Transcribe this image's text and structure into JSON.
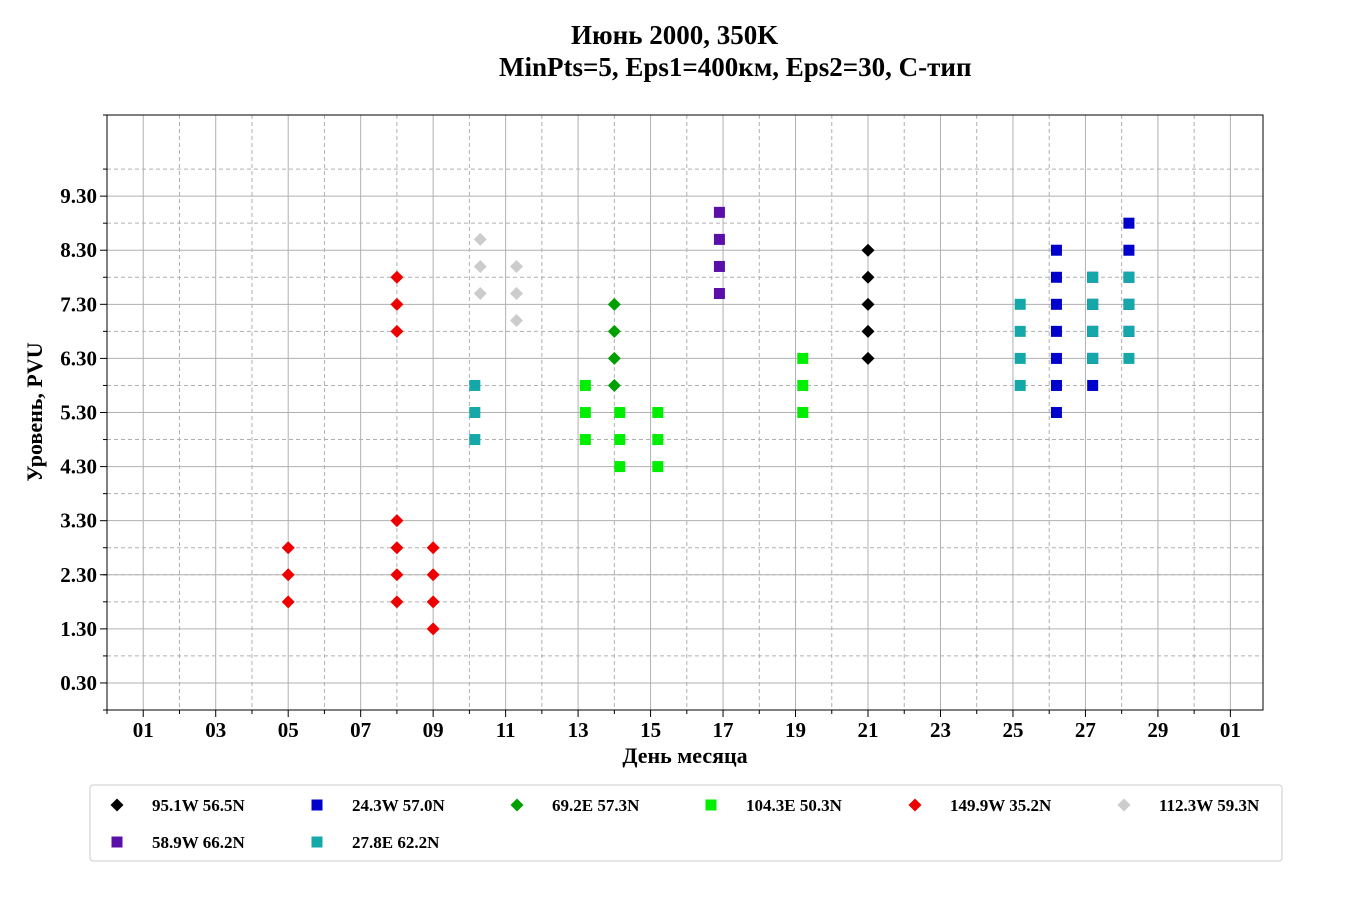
{
  "chart_data": {
    "type": "scatter",
    "title": "Июнь 2000, 350K",
    "subtitle": "MinPts=5, Eps1=400км, Eps2=30, С-тип",
    "xlabel": "День месяца",
    "ylabel": "Уровень, PVU",
    "x_ticks": [
      "01",
      "03",
      "05",
      "07",
      "09",
      "11",
      "13",
      "15",
      "17",
      "19",
      "21",
      "23",
      "25",
      "27",
      "29",
      "01"
    ],
    "y_ticks": [
      "0.30",
      "1.30",
      "2.30",
      "3.30",
      "4.30",
      "5.30",
      "6.30",
      "7.30",
      "8.30",
      "9.30"
    ],
    "xlim": [
      0,
      31.9
    ],
    "ylim": [
      -0.2,
      10.8
    ],
    "grid": true,
    "legend_position": "bottom",
    "series": [
      {
        "name": "95.1W 56.5N",
        "color": "#000000",
        "marker": "diamond",
        "points": [
          [
            21.0,
            6.3
          ],
          [
            21.0,
            6.8
          ],
          [
            21.0,
            7.3
          ],
          [
            21.0,
            7.8
          ],
          [
            21.0,
            8.3
          ]
        ]
      },
      {
        "name": "24.3W 57.0N",
        "color": "#0000cc",
        "marker": "square",
        "points": [
          [
            26.2,
            5.3
          ],
          [
            26.2,
            5.8
          ],
          [
            26.2,
            6.3
          ],
          [
            26.2,
            6.8
          ],
          [
            26.2,
            7.3
          ],
          [
            26.2,
            7.8
          ],
          [
            26.2,
            8.3
          ],
          [
            27.2,
            5.8
          ],
          [
            27.2,
            6.3
          ],
          [
            27.2,
            6.8
          ],
          [
            27.2,
            7.3
          ],
          [
            27.2,
            7.8
          ],
          [
            28.2,
            6.8
          ],
          [
            28.2,
            7.3
          ],
          [
            28.2,
            7.8
          ],
          [
            28.2,
            8.3
          ],
          [
            28.2,
            8.8
          ]
        ]
      },
      {
        "name": "69.2E 57.3N",
        "color": "#00a000",
        "marker": "diamond",
        "points": [
          [
            14.0,
            5.8
          ],
          [
            14.0,
            6.3
          ],
          [
            14.0,
            6.8
          ],
          [
            14.0,
            7.3
          ]
        ]
      },
      {
        "name": "104.3E 50.3N",
        "color": "#00ee00",
        "marker": "square",
        "points": [
          [
            13.2,
            4.8
          ],
          [
            13.2,
            5.3
          ],
          [
            13.2,
            5.8
          ],
          [
            14.15,
            4.3
          ],
          [
            14.15,
            4.8
          ],
          [
            14.15,
            5.3
          ],
          [
            15.2,
            4.3
          ],
          [
            15.2,
            4.8
          ],
          [
            15.2,
            5.3
          ],
          [
            19.2,
            5.3
          ],
          [
            19.2,
            5.8
          ],
          [
            19.2,
            6.3
          ]
        ]
      },
      {
        "name": "149.9W 35.2N",
        "color": "#ee0000",
        "marker": "diamond",
        "points": [
          [
            5.0,
            1.8
          ],
          [
            5.0,
            2.3
          ],
          [
            5.0,
            2.8
          ],
          [
            8.0,
            1.8
          ],
          [
            8.0,
            2.3
          ],
          [
            8.0,
            2.8
          ],
          [
            8.0,
            3.3
          ],
          [
            8.0,
            6.8
          ],
          [
            8.0,
            7.3
          ],
          [
            8.0,
            7.8
          ],
          [
            9.0,
            1.3
          ],
          [
            9.0,
            1.8
          ],
          [
            9.0,
            2.3
          ],
          [
            9.0,
            2.8
          ]
        ]
      },
      {
        "name": "112.3W 59.3N",
        "color": "#cccccc",
        "marker": "diamond",
        "points": [
          [
            10.3,
            7.5
          ],
          [
            10.3,
            8.0
          ],
          [
            10.3,
            8.5
          ],
          [
            11.3,
            7.0
          ],
          [
            11.3,
            7.5
          ],
          [
            11.3,
            8.0
          ]
        ]
      },
      {
        "name": "58.9W 66.2N",
        "color": "#5a0fa8",
        "marker": "square",
        "points": [
          [
            16.9,
            7.5
          ],
          [
            16.9,
            8.0
          ],
          [
            16.9,
            8.5
          ],
          [
            16.9,
            9.0
          ]
        ]
      },
      {
        "name": "27.8E 62.2N",
        "color": "#14a8a8",
        "marker": "square",
        "points": [
          [
            10.15,
            4.8
          ],
          [
            10.15,
            5.3
          ],
          [
            10.15,
            5.8
          ],
          [
            25.2,
            5.8
          ],
          [
            25.2,
            6.3
          ],
          [
            25.2,
            6.8
          ],
          [
            25.2,
            7.3
          ],
          [
            27.2,
            6.3
          ],
          [
            27.2,
            6.8
          ],
          [
            27.2,
            7.3
          ],
          [
            27.2,
            7.8
          ],
          [
            28.2,
            6.3
          ],
          [
            28.2,
            6.8
          ],
          [
            28.2,
            7.3
          ],
          [
            28.2,
            7.8
          ]
        ]
      }
    ]
  }
}
